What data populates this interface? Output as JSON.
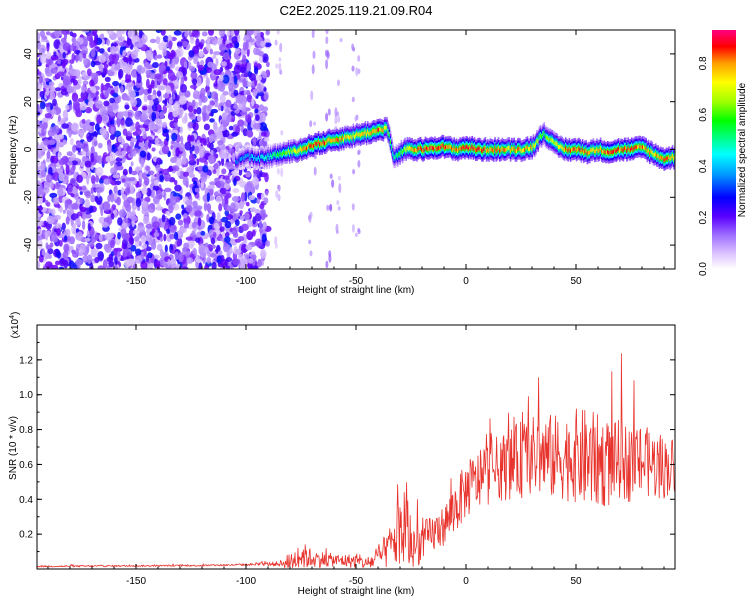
{
  "figure_title": "C2E2.2025.119.21.09.R04",
  "chart_data": [
    {
      "type": "heatmap",
      "xlabel": "Height of straight line (km)",
      "ylabel": "Frequency (Hz)",
      "xlim": [
        -195,
        95
      ],
      "ylim": [
        -50,
        50
      ],
      "xticks": [
        -150,
        -100,
        -50,
        0,
        50
      ],
      "yticks": [
        -40,
        -20,
        0,
        20,
        40
      ],
      "colorbar": {
        "label": "Normalized spectral amplitude",
        "range": [
          0.0,
          0.93
        ],
        "ticks": [
          "0.0",
          "0.2",
          "0.4",
          "0.6",
          "0.8"
        ],
        "colormap": [
          "#ffffff",
          "#e8d4ff",
          "#a070ff",
          "#6a00ff",
          "#0000ff",
          "#00a0ff",
          "#00ffff",
          "#00ff80",
          "#00ff00",
          "#a0ff00",
          "#ffff00",
          "#ffa000",
          "#ff0000",
          "#ff0080"
        ]
      },
      "noise_region_km": [
        -195,
        -90
      ],
      "signal_track": {
        "x": [
          -105,
          -100,
          -95,
          -90,
          -85,
          -80,
          -75,
          -70,
          -65,
          -60,
          -55,
          -50,
          -45,
          -40,
          -36,
          -33,
          -31,
          -28,
          -25,
          -20,
          -15,
          -10,
          -5,
          0,
          5,
          10,
          15,
          20,
          25,
          30,
          35,
          40,
          45,
          50,
          55,
          60,
          65,
          70,
          75,
          80,
          85,
          90,
          95
        ],
        "y": [
          -5,
          -3,
          -4,
          -3,
          -2,
          -1,
          0,
          2,
          3,
          4,
          5,
          6,
          7,
          8,
          9,
          -4,
          -2,
          0,
          0,
          0,
          1,
          1,
          0,
          1,
          0,
          0,
          0,
          0,
          0,
          1,
          7,
          2,
          0,
          0,
          -1,
          0,
          -1,
          0,
          0,
          1,
          -2,
          -4,
          -3
        ],
        "peak_amplitude": [
          0.35,
          0.4,
          0.45,
          0.5,
          0.6,
          0.7,
          0.85,
          0.9,
          0.9,
          0.85,
          0.8,
          0.75,
          0.8,
          0.9,
          0.7,
          0.5,
          0.6,
          0.7,
          0.85,
          0.9,
          0.9,
          0.9,
          0.85,
          0.9,
          0.9,
          0.85,
          0.85,
          0.8,
          0.85,
          0.8,
          0.6,
          0.75,
          0.85,
          0.9,
          0.85,
          0.8,
          0.9,
          0.85,
          0.9,
          0.85,
          0.8,
          0.85,
          0.8
        ]
      }
    },
    {
      "type": "line",
      "xlabel": "Height of straight line (km)",
      "ylabel": "SNR (10 * v/v)",
      "exponent_label": "(x10",
      "exponent_power": "4",
      "exponent_close": ")",
      "xlim": [
        -195,
        95
      ],
      "ylim": [
        0,
        14000
      ],
      "xticks": [
        -150,
        -100,
        -50,
        0,
        50
      ],
      "yticks": [
        2000,
        4000,
        6000,
        8000,
        10000,
        12000
      ],
      "ytick_labels": [
        "0.2",
        "0.4",
        "0.6",
        "0.8",
        "1.0",
        "1.2"
      ],
      "series": [
        {
          "color": "#e8322c",
          "envelope": {
            "x": [
              -195,
              -120,
              -100,
              -85,
              -80,
              -75,
              -70,
              -60,
              -50,
              -45,
              -40,
              -35,
              -30,
              -28,
              -25,
              -22,
              -20,
              -15,
              -10,
              -5,
              0,
              5,
              10,
              15,
              20,
              25,
              30,
              35,
              40,
              45,
              50,
              55,
              60,
              65,
              70,
              75,
              80,
              85,
              90,
              95
            ],
            "base": [
              150,
              200,
              250,
              300,
              400,
              800,
              600,
              500,
              450,
              300,
              600,
              1200,
              2000,
              2500,
              1500,
              1200,
              1600,
              2000,
              2500,
              3500,
              4500,
              5000,
              5500,
              5800,
              6000,
              6300,
              6500,
              6500,
              6400,
              6400,
              6500,
              6300,
              6200,
              6000,
              6300,
              6000,
              6200,
              6000,
              5800,
              6000
            ],
            "amplitude": [
              100,
              100,
              120,
              300,
              1200,
              1800,
              1200,
              800,
              900,
              700,
              1500,
              2500,
              4500,
              6500,
              3500,
              2500,
              2500,
              2500,
              2500,
              3500,
              3500,
              3800,
              4000,
              4200,
              4500,
              5000,
              5000,
              5500,
              5500,
              5500,
              6000,
              6500,
              6000,
              5500,
              5000,
              5000,
              4500,
              4500,
              4000,
              3500
            ]
          }
        }
      ]
    }
  ]
}
